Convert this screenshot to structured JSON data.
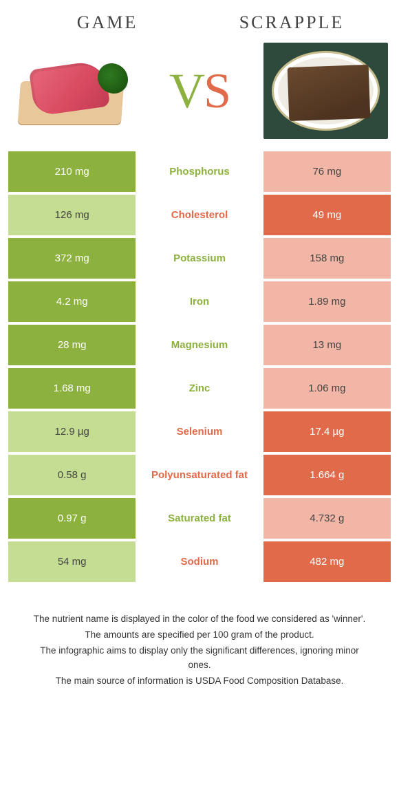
{
  "colors": {
    "left_win": "#8cb13e",
    "left_lose": "#c4dd93",
    "right_win": "#e06a4a",
    "right_lose": "#f2b6a6",
    "text_dark": "#444444",
    "background": "#ffffff"
  },
  "header": {
    "left": "GAME",
    "right": "SCRAPPLE",
    "vs_v": "V",
    "vs_s": "S"
  },
  "rows": [
    {
      "label": "Phosphorus",
      "left": "210 mg",
      "right": "76 mg",
      "winner": "left"
    },
    {
      "label": "Cholesterol",
      "left": "126 mg",
      "right": "49 mg",
      "winner": "right"
    },
    {
      "label": "Potassium",
      "left": "372 mg",
      "right": "158 mg",
      "winner": "left"
    },
    {
      "label": "Iron",
      "left": "4.2 mg",
      "right": "1.89 mg",
      "winner": "left"
    },
    {
      "label": "Magnesium",
      "left": "28 mg",
      "right": "13 mg",
      "winner": "left"
    },
    {
      "label": "Zinc",
      "left": "1.68 mg",
      "right": "1.06 mg",
      "winner": "left"
    },
    {
      "label": "Selenium",
      "left": "12.9 µg",
      "right": "17.4 µg",
      "winner": "right"
    },
    {
      "label": "Polyunsaturated fat",
      "left": "0.58 g",
      "right": "1.664 g",
      "winner": "right"
    },
    {
      "label": "Saturated fat",
      "left": "0.97 g",
      "right": "4.732 g",
      "winner": "left"
    },
    {
      "label": "Sodium",
      "left": "54 mg",
      "right": "482 mg",
      "winner": "right"
    }
  ],
  "footer": [
    "The nutrient name is displayed in the color of the food we considered as 'winner'.",
    "The amounts are specified per 100 gram of the product.",
    "The infographic aims to display only the significant differences, ignoring minor ones.",
    "The main source of information is USDA Food Composition Database."
  ]
}
